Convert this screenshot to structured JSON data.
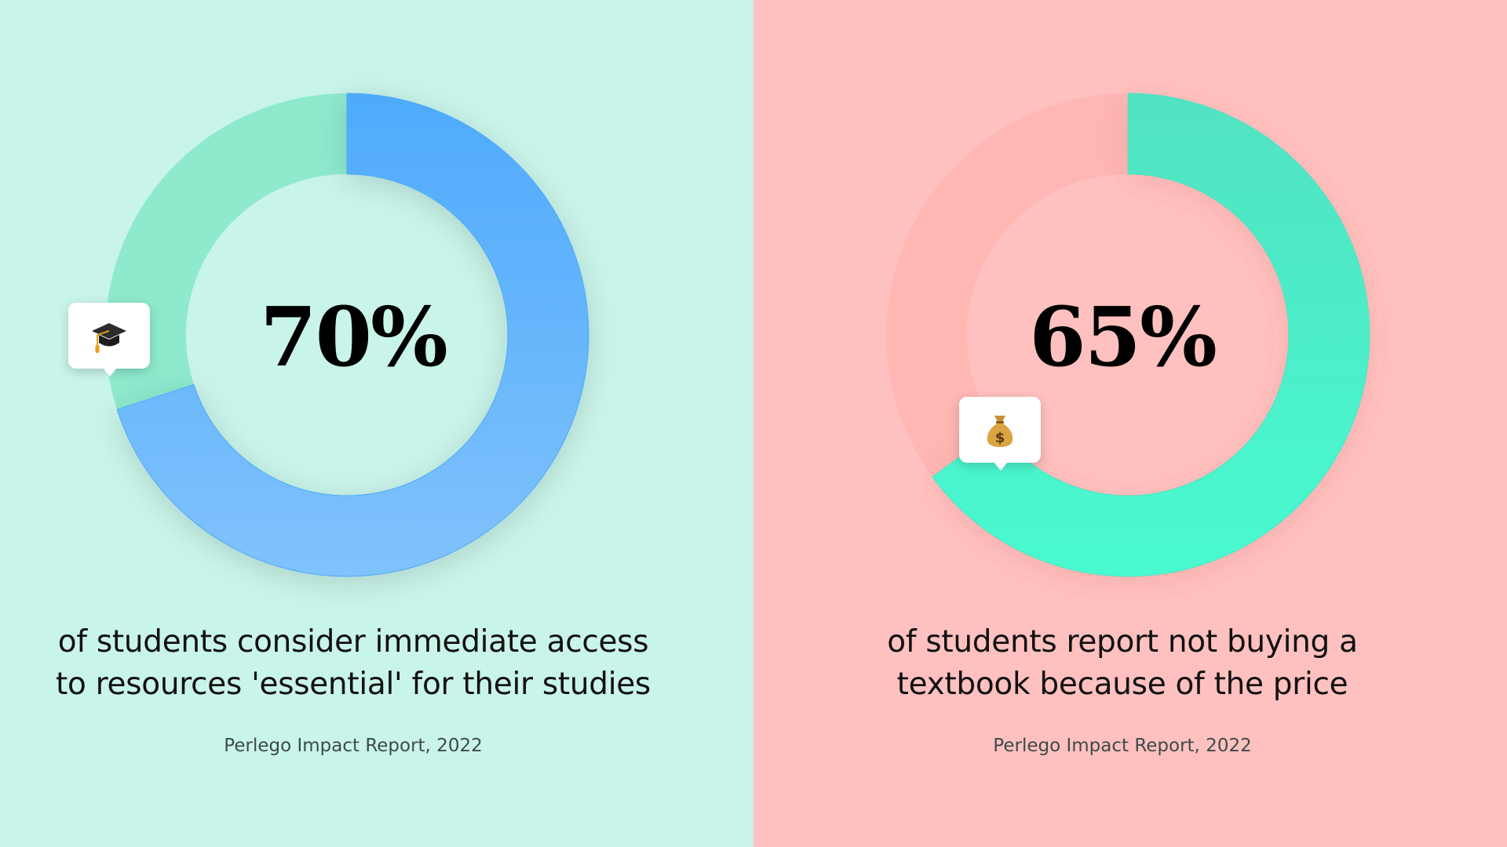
{
  "panels": [
    {
      "percent_label": "70%",
      "caption_lines": [
        "of students consider immediate access",
        "to resources 'essential' for their studies"
      ],
      "source": "Perlego Impact Report, 2022",
      "icon": "graduation-cap-icon",
      "colors": {
        "background": "#c9f4e9",
        "track": "#8ee9cd",
        "arc_start": "#4eaafc",
        "arc_end": "#80c2fc"
      }
    },
    {
      "percent_label": "65%",
      "caption_lines": [
        "of students report not buying a",
        "textbook because of the price"
      ],
      "source": "Perlego Impact Report, 2022",
      "icon": "money-bag-icon",
      "colors": {
        "background": "#ffc1bf",
        "track": "#ffb7b4",
        "arc_start": "#52e2c2",
        "arc_end": "#48fad0"
      }
    }
  ],
  "chart_data": [
    {
      "type": "pie",
      "labels": [
        "of students consider immediate access to resources 'essential' for their studies"
      ],
      "values": [
        70
      ],
      "max": 100,
      "unit": "%"
    },
    {
      "type": "pie",
      "labels": [
        "of students report not buying a textbook because of the price"
      ],
      "values": [
        65
      ],
      "max": 100,
      "unit": "%"
    }
  ]
}
